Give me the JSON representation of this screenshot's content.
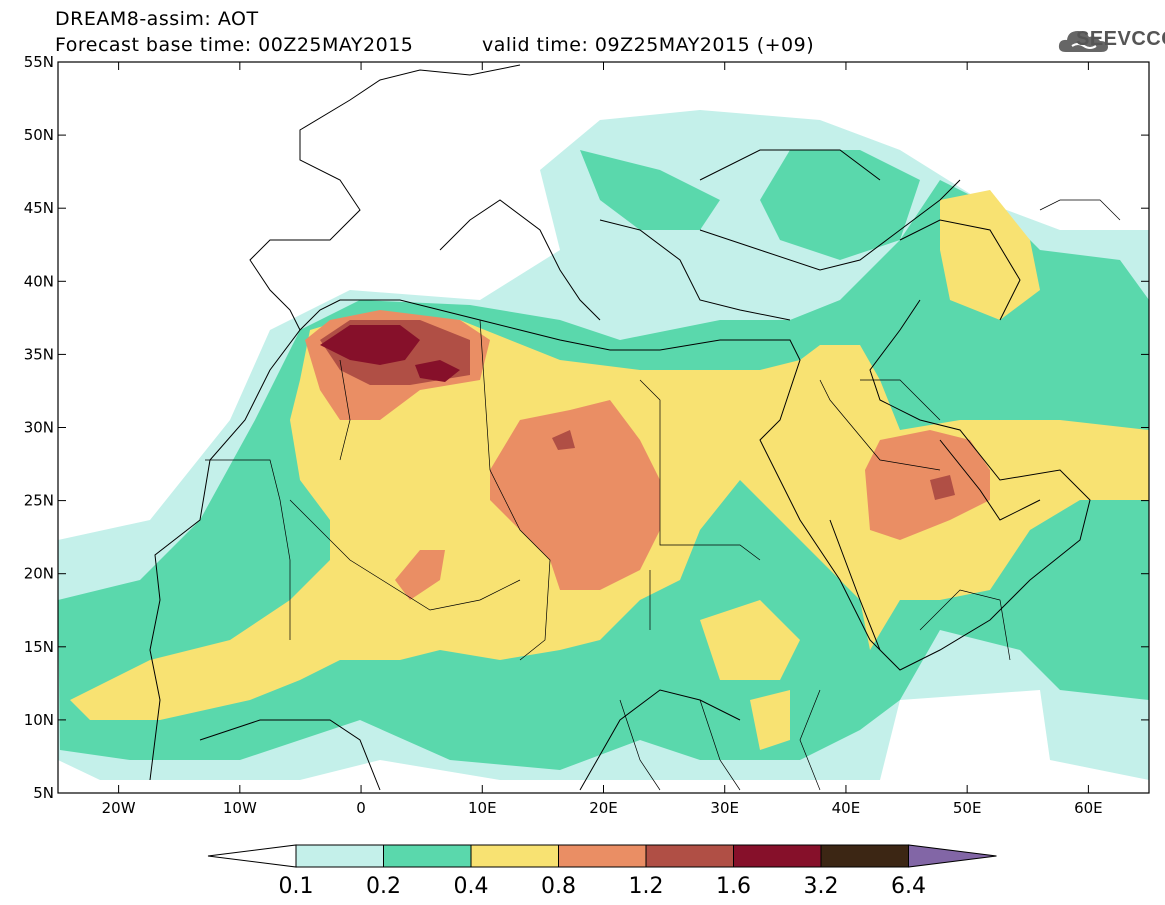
{
  "header": {
    "title": "DREAM8-assim: AOT",
    "base_time": "Forecast base time: 00Z25MAY2015",
    "valid_time": "valid time: 09Z25MAY2015 (+09)",
    "logo_text": "SEEVCCC"
  },
  "map": {
    "lon_range": [
      -25,
      65
    ],
    "lat_range": [
      5,
      55
    ],
    "lat_ticks": [
      "5N",
      "10N",
      "15N",
      "20N",
      "25N",
      "30N",
      "35N",
      "40N",
      "45N",
      "50N",
      "55N"
    ],
    "lon_ticks": [
      "20W",
      "10W",
      "0",
      "10E",
      "20E",
      "30E",
      "40E",
      "50E",
      "60E"
    ],
    "colors": {
      "c01": "#c4f0ea",
      "c02": "#5ad8ac",
      "c04": "#f8e272",
      "c08": "#ea8e64",
      "c12": "#b04f45",
      "c16": "#86102a",
      "c32": "#3c2614",
      "c64": "#8266a6"
    }
  },
  "colorbar": {
    "labels": [
      "0.1",
      "0.2",
      "0.4",
      "0.8",
      "1.2",
      "1.6",
      "3.2",
      "6.4"
    ],
    "colors": [
      "#c4f0ea",
      "#5ad8ac",
      "#f8e272",
      "#ea8e64",
      "#b04f45",
      "#86102a",
      "#3c2614"
    ],
    "over_color": "#8266a6",
    "under_color": "#ffffff"
  }
}
